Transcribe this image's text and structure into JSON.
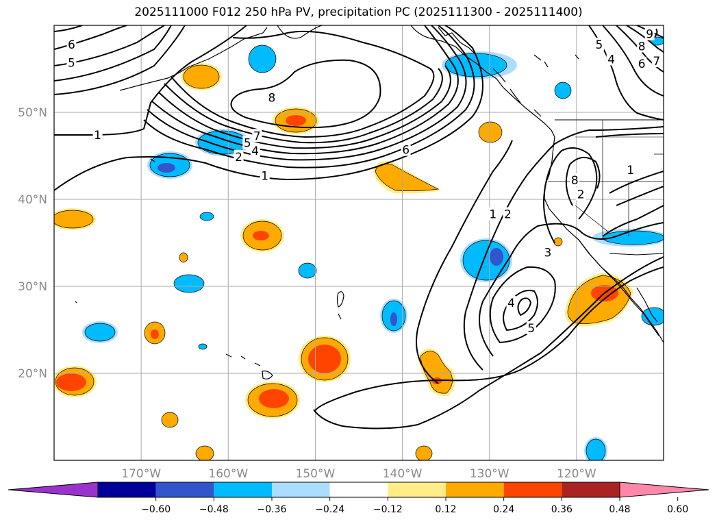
{
  "title": "2025111000 F012 250 hPa PV, precipitation PC (2025111300 - 2025111400)",
  "map": {
    "lon_range": [
      -180,
      -110
    ],
    "lat_range": [
      10,
      60
    ],
    "lat_ticks": [
      {
        "value": 50,
        "label": "50°N"
      },
      {
        "value": 40,
        "label": "40°N"
      },
      {
        "value": 30,
        "label": "30°N"
      },
      {
        "value": 20,
        "label": "20°N"
      }
    ],
    "lon_ticks": [
      {
        "value": -170,
        "label": "170°W"
      },
      {
        "value": -160,
        "label": "160°W"
      },
      {
        "value": -150,
        "label": "150°W"
      },
      {
        "value": -140,
        "label": "140°W"
      },
      {
        "value": -130,
        "label": "130°W"
      },
      {
        "value": -120,
        "label": "120°W"
      }
    ],
    "gridlines": true
  },
  "pv_contour_labels": [
    {
      "text": "6",
      "lon": -178,
      "lat": 57.8
    },
    {
      "text": "5",
      "lon": -178,
      "lat": 55.7
    },
    {
      "text": "1",
      "lon": -175,
      "lat": 47.4
    },
    {
      "text": "8",
      "lon": -155,
      "lat": 51.7
    },
    {
      "text": "7",
      "lon": -156.7,
      "lat": 47.3
    },
    {
      "text": "5",
      "lon": -157.8,
      "lat": 46.5
    },
    {
      "text": "4",
      "lon": -156.9,
      "lat": 45.6
    },
    {
      "text": "2",
      "lon": -158.8,
      "lat": 44.9
    },
    {
      "text": "1",
      "lon": -155.8,
      "lat": 42.7
    },
    {
      "text": "6",
      "lon": -139.6,
      "lat": 45.7
    },
    {
      "text": "1",
      "lon": -129.6,
      "lat": 38.3
    },
    {
      "text": "2",
      "lon": -127.9,
      "lat": 38.3
    },
    {
      "text": "3",
      "lon": -123.3,
      "lat": 33.9
    },
    {
      "text": "4",
      "lon": -127.5,
      "lat": 28.1
    },
    {
      "text": "5",
      "lon": -125.2,
      "lat": 25.2
    },
    {
      "text": "8",
      "lon": -120.2,
      "lat": 42.2
    },
    {
      "text": "2",
      "lon": -119.5,
      "lat": 40.6
    },
    {
      "text": "1",
      "lon": -113.8,
      "lat": 43.4
    },
    {
      "text": "5",
      "lon": -117.4,
      "lat": 57.8
    },
    {
      "text": "4",
      "lon": -116,
      "lat": 56.1
    },
    {
      "text": "8",
      "lon": -112.5,
      "lat": 57.6
    },
    {
      "text": "6",
      "lon": -112.5,
      "lat": 55.6
    },
    {
      "text": "7",
      "lon": -110.8,
      "lat": 55.9
    },
    {
      "text": "9",
      "lon": -111.6,
      "lat": 59
    }
  ],
  "colorbar": {
    "colors": [
      "#9933cc",
      "#000099",
      "#3355cc",
      "#00bbff",
      "#aaddff",
      "#ffffff",
      "#ffee88",
      "#ffaa00",
      "#ff4400",
      "#aa2222",
      "#ff88aa"
    ],
    "tick_labels": [
      "−0.60",
      "−0.48",
      "−0.36",
      "−0.24",
      "−0.12",
      "0.12",
      "0.24",
      "0.36",
      "0.48",
      "0.60"
    ]
  }
}
